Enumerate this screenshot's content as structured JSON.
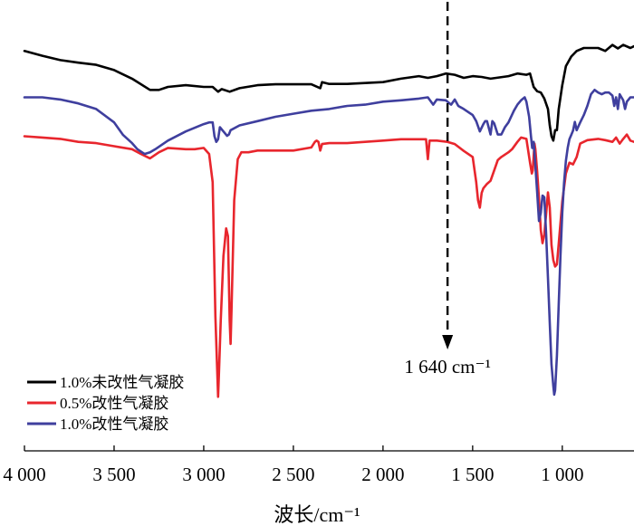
{
  "chart_data": {
    "type": "line",
    "title": "",
    "xlabel": "波长/cm⁻¹",
    "ylabel": "",
    "x_reversed": true,
    "xlim": [
      4000,
      600
    ],
    "x_ticks": [
      4000,
      3500,
      3000,
      2500,
      2000,
      1500,
      1000
    ],
    "x_tick_labels": [
      "4 000",
      "3 500",
      "3 000",
      "2 500",
      "2 000",
      "1 500",
      "1 000"
    ],
    "ylim": [
      0,
      1
    ],
    "y_axis_shown": false,
    "grid": false,
    "legend_position": "bottom-left",
    "legend": [
      "1.0%未改性气凝胶",
      "0.5%改性气凝胶",
      "1.0%改性气凝胶"
    ],
    "annotation": {
      "label": "1 640 cm⁻¹",
      "x": 1640,
      "style": "dashed-arrow"
    },
    "series": [
      {
        "name": "1.0%未改性气凝胶",
        "color": "#000000",
        "points": [
          [
            4000,
            0.924
          ],
          [
            3900,
            0.913
          ],
          [
            3800,
            0.903
          ],
          [
            3700,
            0.897
          ],
          [
            3600,
            0.892
          ],
          [
            3500,
            0.88
          ],
          [
            3400,
            0.86
          ],
          [
            3300,
            0.834
          ],
          [
            3250,
            0.834
          ],
          [
            3200,
            0.841
          ],
          [
            3100,
            0.845
          ],
          [
            3000,
            0.841
          ],
          [
            2950,
            0.841
          ],
          [
            2920,
            0.83
          ],
          [
            2900,
            0.836
          ],
          [
            2855,
            0.83
          ],
          [
            2800,
            0.838
          ],
          [
            2700,
            0.845
          ],
          [
            2600,
            0.847
          ],
          [
            2500,
            0.847
          ],
          [
            2400,
            0.847
          ],
          [
            2350,
            0.838
          ],
          [
            2340,
            0.852
          ],
          [
            2300,
            0.848
          ],
          [
            2200,
            0.848
          ],
          [
            2100,
            0.85
          ],
          [
            2000,
            0.852
          ],
          [
            1900,
            0.86
          ],
          [
            1800,
            0.866
          ],
          [
            1750,
            0.862
          ],
          [
            1700,
            0.866
          ],
          [
            1650,
            0.872
          ],
          [
            1600,
            0.869
          ],
          [
            1550,
            0.862
          ],
          [
            1500,
            0.866
          ],
          [
            1450,
            0.864
          ],
          [
            1400,
            0.86
          ],
          [
            1300,
            0.866
          ],
          [
            1250,
            0.872
          ],
          [
            1200,
            0.869
          ],
          [
            1180,
            0.872
          ],
          [
            1160,
            0.841
          ],
          [
            1140,
            0.831
          ],
          [
            1120,
            0.828
          ],
          [
            1100,
            0.814
          ],
          [
            1080,
            0.79
          ],
          [
            1070,
            0.752
          ],
          [
            1060,
            0.727
          ],
          [
            1050,
            0.717
          ],
          [
            1040,
            0.741
          ],
          [
            1030,
            0.741
          ],
          [
            1020,
            0.79
          ],
          [
            1000,
            0.845
          ],
          [
            980,
            0.889
          ],
          [
            950,
            0.911
          ],
          [
            920,
            0.924
          ],
          [
            880,
            0.931
          ],
          [
            840,
            0.931
          ],
          [
            800,
            0.931
          ],
          [
            760,
            0.924
          ],
          [
            720,
            0.938
          ],
          [
            690,
            0.93
          ],
          [
            660,
            0.938
          ],
          [
            620,
            0.931
          ],
          [
            600,
            0.935
          ]
        ]
      },
      {
        "name": "0.5%改性气凝胶",
        "color": "#e8262d",
        "points": [
          [
            4000,
            0.727
          ],
          [
            3900,
            0.724
          ],
          [
            3800,
            0.721
          ],
          [
            3700,
            0.714
          ],
          [
            3600,
            0.711
          ],
          [
            3500,
            0.704
          ],
          [
            3400,
            0.697
          ],
          [
            3350,
            0.686
          ],
          [
            3300,
            0.676
          ],
          [
            3250,
            0.69
          ],
          [
            3200,
            0.7
          ],
          [
            3100,
            0.697
          ],
          [
            3050,
            0.697
          ],
          [
            3000,
            0.7
          ],
          [
            2970,
            0.686
          ],
          [
            2950,
            0.621
          ],
          [
            2935,
            0.312
          ],
          [
            2925,
            0.187
          ],
          [
            2920,
            0.125
          ],
          [
            2915,
            0.182
          ],
          [
            2905,
            0.3
          ],
          [
            2890,
            0.45
          ],
          [
            2875,
            0.514
          ],
          [
            2865,
            0.496
          ],
          [
            2855,
            0.3
          ],
          [
            2850,
            0.247
          ],
          [
            2845,
            0.324
          ],
          [
            2830,
            0.579
          ],
          [
            2810,
            0.674
          ],
          [
            2790,
            0.69
          ],
          [
            2750,
            0.69
          ],
          [
            2700,
            0.694
          ],
          [
            2600,
            0.694
          ],
          [
            2500,
            0.694
          ],
          [
            2400,
            0.701
          ],
          [
            2380,
            0.714
          ],
          [
            2370,
            0.717
          ],
          [
            2360,
            0.714
          ],
          [
            2350,
            0.694
          ],
          [
            2340,
            0.709
          ],
          [
            2300,
            0.711
          ],
          [
            2200,
            0.711
          ],
          [
            2100,
            0.714
          ],
          [
            2000,
            0.717
          ],
          [
            1900,
            0.72
          ],
          [
            1800,
            0.72
          ],
          [
            1760,
            0.72
          ],
          [
            1750,
            0.674
          ],
          [
            1740,
            0.717
          ],
          [
            1720,
            0.717
          ],
          [
            1700,
            0.717
          ],
          [
            1640,
            0.714
          ],
          [
            1600,
            0.709
          ],
          [
            1550,
            0.693
          ],
          [
            1500,
            0.679
          ],
          [
            1480,
            0.621
          ],
          [
            1470,
            0.579
          ],
          [
            1460,
            0.562
          ],
          [
            1450,
            0.596
          ],
          [
            1440,
            0.607
          ],
          [
            1420,
            0.617
          ],
          [
            1400,
            0.624
          ],
          [
            1380,
            0.648
          ],
          [
            1360,
            0.672
          ],
          [
            1340,
            0.679
          ],
          [
            1300,
            0.69
          ],
          [
            1280,
            0.697
          ],
          [
            1250,
            0.714
          ],
          [
            1230,
            0.724
          ],
          [
            1200,
            0.721
          ],
          [
            1180,
            0.666
          ],
          [
            1170,
            0.641
          ],
          [
            1165,
            0.648
          ],
          [
            1155,
            0.71
          ],
          [
            1150,
            0.697
          ],
          [
            1140,
            0.645
          ],
          [
            1130,
            0.583
          ],
          [
            1120,
            0.51
          ],
          [
            1110,
            0.48
          ],
          [
            1100,
            0.5
          ],
          [
            1090,
            0.548
          ],
          [
            1080,
            0.597
          ],
          [
            1070,
            0.562
          ],
          [
            1060,
            0.476
          ],
          [
            1050,
            0.441
          ],
          [
            1040,
            0.426
          ],
          [
            1030,
            0.431
          ],
          [
            1020,
            0.479
          ],
          [
            1000,
            0.576
          ],
          [
            980,
            0.641
          ],
          [
            960,
            0.666
          ],
          [
            940,
            0.662
          ],
          [
            920,
            0.679
          ],
          [
            900,
            0.71
          ],
          [
            860,
            0.718
          ],
          [
            800,
            0.721
          ],
          [
            760,
            0.718
          ],
          [
            720,
            0.714
          ],
          [
            700,
            0.724
          ],
          [
            680,
            0.71
          ],
          [
            660,
            0.721
          ],
          [
            640,
            0.731
          ],
          [
            620,
            0.717
          ],
          [
            600,
            0.714
          ]
        ]
      },
      {
        "name": "1.0%改性气凝胶",
        "color": "#3f3f9e",
        "points": [
          [
            4000,
            0.817
          ],
          [
            3900,
            0.817
          ],
          [
            3800,
            0.812
          ],
          [
            3700,
            0.803
          ],
          [
            3600,
            0.79
          ],
          [
            3500,
            0.759
          ],
          [
            3450,
            0.73
          ],
          [
            3400,
            0.711
          ],
          [
            3370,
            0.697
          ],
          [
            3330,
            0.686
          ],
          [
            3300,
            0.69
          ],
          [
            3270,
            0.697
          ],
          [
            3200,
            0.717
          ],
          [
            3100,
            0.738
          ],
          [
            3000,
            0.755
          ],
          [
            2970,
            0.759
          ],
          [
            2950,
            0.759
          ],
          [
            2940,
            0.727
          ],
          [
            2930,
            0.714
          ],
          [
            2920,
            0.72
          ],
          [
            2910,
            0.748
          ],
          [
            2890,
            0.738
          ],
          [
            2870,
            0.728
          ],
          [
            2860,
            0.731
          ],
          [
            2850,
            0.741
          ],
          [
            2800,
            0.752
          ],
          [
            2700,
            0.762
          ],
          [
            2600,
            0.772
          ],
          [
            2500,
            0.779
          ],
          [
            2400,
            0.786
          ],
          [
            2300,
            0.79
          ],
          [
            2200,
            0.797
          ],
          [
            2100,
            0.8
          ],
          [
            2000,
            0.807
          ],
          [
            1900,
            0.81
          ],
          [
            1800,
            0.814
          ],
          [
            1750,
            0.817
          ],
          [
            1720,
            0.8
          ],
          [
            1700,
            0.812
          ],
          [
            1650,
            0.81
          ],
          [
            1620,
            0.8
          ],
          [
            1600,
            0.812
          ],
          [
            1580,
            0.797
          ],
          [
            1550,
            0.79
          ],
          [
            1500,
            0.776
          ],
          [
            1480,
            0.762
          ],
          [
            1460,
            0.738
          ],
          [
            1440,
            0.755
          ],
          [
            1430,
            0.762
          ],
          [
            1420,
            0.762
          ],
          [
            1400,
            0.731
          ],
          [
            1390,
            0.762
          ],
          [
            1380,
            0.757
          ],
          [
            1360,
            0.731
          ],
          [
            1340,
            0.731
          ],
          [
            1320,
            0.748
          ],
          [
            1300,
            0.759
          ],
          [
            1270,
            0.786
          ],
          [
            1250,
            0.8
          ],
          [
            1230,
            0.81
          ],
          [
            1210,
            0.817
          ],
          [
            1200,
            0.807
          ],
          [
            1185,
            0.772
          ],
          [
            1175,
            0.728
          ],
          [
            1168,
            0.7
          ],
          [
            1160,
            0.714
          ],
          [
            1150,
            0.659
          ],
          [
            1140,
            0.597
          ],
          [
            1130,
            0.531
          ],
          [
            1120,
            0.55
          ],
          [
            1110,
            0.59
          ],
          [
            1100,
            0.586
          ],
          [
            1090,
            0.5
          ],
          [
            1080,
            0.4
          ],
          [
            1070,
            0.295
          ],
          [
            1060,
            0.2
          ],
          [
            1050,
            0.15
          ],
          [
            1045,
            0.13
          ],
          [
            1040,
            0.14
          ],
          [
            1030,
            0.22
          ],
          [
            1020,
            0.34
          ],
          [
            1010,
            0.45
          ],
          [
            1000,
            0.55
          ],
          [
            990,
            0.62
          ],
          [
            980,
            0.67
          ],
          [
            970,
            0.7
          ],
          [
            960,
            0.72
          ],
          [
            950,
            0.73
          ],
          [
            940,
            0.74
          ],
          [
            930,
            0.76
          ],
          [
            920,
            0.741
          ],
          [
            900,
            0.759
          ],
          [
            880,
            0.776
          ],
          [
            860,
            0.797
          ],
          [
            840,
            0.824
          ],
          [
            820,
            0.834
          ],
          [
            800,
            0.828
          ],
          [
            780,
            0.824
          ],
          [
            760,
            0.828
          ],
          [
            740,
            0.828
          ],
          [
            720,
            0.821
          ],
          [
            710,
            0.797
          ],
          [
            700,
            0.817
          ],
          [
            690,
            0.79
          ],
          [
            680,
            0.824
          ],
          [
            660,
            0.81
          ],
          [
            650,
            0.79
          ],
          [
            640,
            0.807
          ],
          [
            620,
            0.817
          ],
          [
            600,
            0.817
          ]
        ]
      }
    ]
  }
}
